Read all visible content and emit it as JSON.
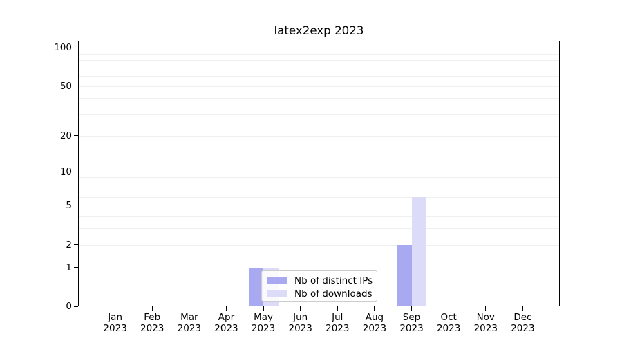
{
  "title": "latex2exp 2023",
  "chart_data": {
    "type": "bar",
    "title": "latex2exp 2023",
    "categories": [
      "Jan 2023",
      "Feb 2023",
      "Mar 2023",
      "Apr 2023",
      "May 2023",
      "Jun 2023",
      "Jul 2023",
      "Aug 2023",
      "Sep 2023",
      "Oct 2023",
      "Nov 2023",
      "Dec 2023"
    ],
    "series": [
      {
        "name": "Nb of distinct IPs",
        "color": "#a9a9f1",
        "values": [
          0,
          0,
          0,
          0,
          1,
          0,
          0,
          0,
          2,
          0,
          0,
          0
        ]
      },
      {
        "name": "Nb of downloads",
        "color": "#dcdcf8",
        "values": [
          0,
          0,
          0,
          0,
          1,
          0,
          0,
          0,
          6,
          0,
          0,
          0
        ]
      }
    ],
    "yscale": "log1p",
    "yticks": [
      0,
      1,
      2,
      5,
      10,
      20,
      50,
      100
    ],
    "ylim": [
      0,
      114
    ],
    "xlabel": "",
    "ylabel": "",
    "grid": "horizontal",
    "legend_position": "inside-bottom-left-of-center",
    "colors": {
      "grid_major": "#c9c9c9",
      "grid_minor": "#efefef",
      "spine": "#000000"
    }
  }
}
